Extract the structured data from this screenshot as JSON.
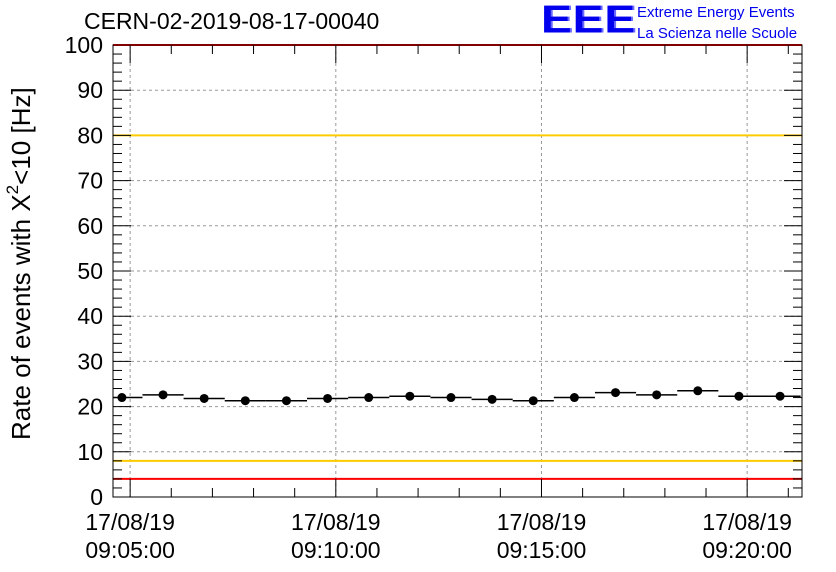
{
  "header": {
    "title": "CERN-02-2019-08-17-00040",
    "logo_text": "EEE",
    "logo_line1": "Extreme Energy Events",
    "logo_line2": "La Scienza nelle Scuole"
  },
  "colors": {
    "red_threshold": "#ff0000",
    "yellow_threshold": "#ffcc00",
    "logo_blue": "#0000ee",
    "markers": "#000000"
  },
  "chart_data": {
    "type": "scatter",
    "title": "CERN-02-2019-08-17-00040",
    "xlabel": "",
    "ylabel": "Rate of events with X²<10 [Hz]",
    "ylabel_main": "Rate of events with X",
    "ylabel_sup": "2",
    "ylabel_tail": "<10 [Hz]",
    "ylim": [
      0,
      100
    ],
    "yticks": [
      "0",
      "10",
      "20",
      "30",
      "40",
      "50",
      "60",
      "70",
      "80",
      "90",
      "100"
    ],
    "xlim": [
      "17/08/19 09:04:35",
      "17/08/19 09:21:20"
    ],
    "xticks": [
      {
        "date": "17/08/19",
        "time": "09:05:00"
      },
      {
        "date": "17/08/19",
        "time": "09:10:00"
      },
      {
        "date": "17/08/19",
        "time": "09:15:00"
      },
      {
        "date": "17/08/19",
        "time": "09:20:00"
      }
    ],
    "grid": true,
    "bin_width_seconds": 60,
    "points": [
      {
        "time": "09:04:48",
        "y": 22.0
      },
      {
        "time": "09:05:48",
        "y": 22.6
      },
      {
        "time": "09:06:48",
        "y": 21.8
      },
      {
        "time": "09:07:48",
        "y": 21.3
      },
      {
        "time": "09:08:48",
        "y": 21.3
      },
      {
        "time": "09:09:48",
        "y": 21.8
      },
      {
        "time": "09:10:48",
        "y": 22.0
      },
      {
        "time": "09:11:48",
        "y": 22.3
      },
      {
        "time": "09:12:48",
        "y": 22.0
      },
      {
        "time": "09:13:48",
        "y": 21.6
      },
      {
        "time": "09:14:48",
        "y": 21.3
      },
      {
        "time": "09:15:48",
        "y": 22.0
      },
      {
        "time": "09:16:48",
        "y": 23.1
      },
      {
        "time": "09:17:48",
        "y": 22.6
      },
      {
        "time": "09:18:48",
        "y": 23.5
      },
      {
        "time": "09:19:48",
        "y": 22.3
      },
      {
        "time": "09:20:48",
        "y": 22.3
      }
    ],
    "thresholds": [
      {
        "y": 100,
        "color": "#ff0000"
      },
      {
        "y": 80,
        "color": "#ffcc00"
      },
      {
        "y": 8,
        "color": "#ffcc00"
      },
      {
        "y": 4,
        "color": "#ff0000"
      }
    ]
  }
}
